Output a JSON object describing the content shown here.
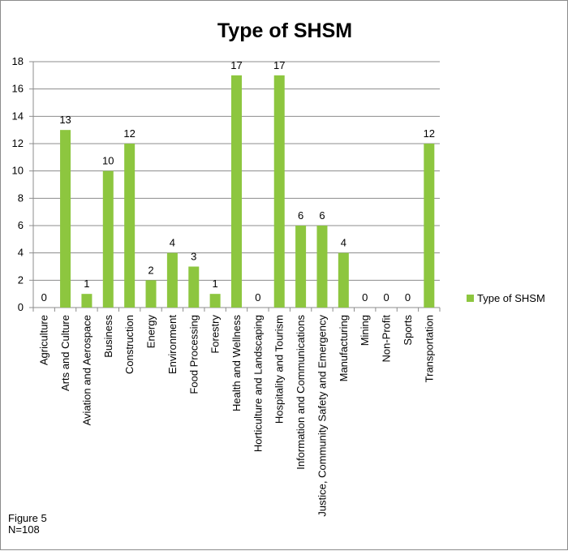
{
  "chart_data": {
    "type": "bar",
    "title": "Type of SHSM",
    "categories": [
      "Agriculture",
      "Arts and Culture",
      "Aviation and Aerospace",
      "Business",
      "Construction",
      "Energy",
      "Environment",
      "Food Processing",
      "Forestry",
      "Health and Wellness",
      "Horticulture and Landscaping",
      "Hospitality and Tourism",
      "Information and Communications",
      "Justice, Community Safety and Emergency",
      "Manufacturing",
      "Mining",
      "Non-Profit",
      "Sports",
      "Transportation"
    ],
    "series": [
      {
        "name": "Type of SHSM",
        "values": [
          0,
          13,
          1,
          10,
          12,
          2,
          4,
          3,
          1,
          17,
          0,
          17,
          6,
          6,
          4,
          0,
          0,
          0,
          12
        ]
      }
    ],
    "ylim": [
      0,
      18
    ],
    "yticks": [
      0,
      2,
      4,
      6,
      8,
      10,
      12,
      14,
      16,
      18
    ],
    "grid": true,
    "data_labels": true,
    "legend_position": "right",
    "bar_color": "#8dc63f"
  },
  "note": {
    "figure": "Figure 5",
    "n": "N=108"
  }
}
